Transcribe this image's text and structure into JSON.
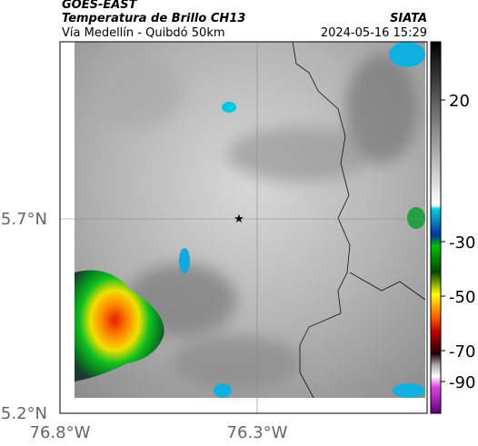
{
  "header": {
    "title": "GOES-EAST",
    "subtitle": "Temperatura de Brillo CH13",
    "location": "Vía Medellín - Quibdó 50km",
    "source": "SIATA",
    "datetime": "2024-05-16 15:29"
  },
  "map": {
    "lat_labels": [
      "5.7°N",
      "5.2°N"
    ],
    "lon_labels": [
      "76.8°W",
      "76.3°W"
    ]
  },
  "colorbar": {
    "labels": [
      "20",
      "-30",
      "-50",
      "-70",
      "-90"
    ]
  }
}
